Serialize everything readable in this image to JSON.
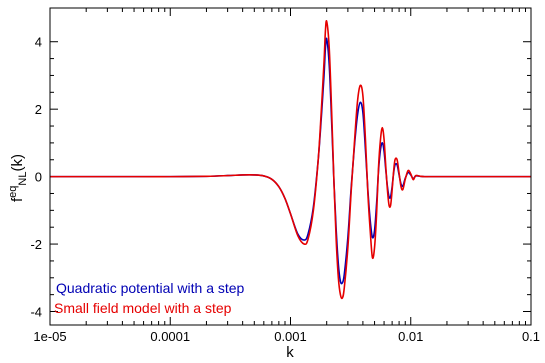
{
  "chart_data": {
    "type": "line",
    "xscale": "log",
    "xlim": [
      1e-05,
      0.1
    ],
    "ylim": [
      -4.4,
      5.0
    ],
    "xlabel": "k",
    "ylabel": {
      "base": "f",
      "sup": "eq",
      "sub": "NL",
      "arg": "(k)"
    },
    "x_ticks": [
      {
        "value": 1e-05,
        "label": "1e-05"
      },
      {
        "value": 0.0001,
        "label": "0.0001"
      },
      {
        "value": 0.001,
        "label": "0.001"
      },
      {
        "value": 0.01,
        "label": "0.01"
      },
      {
        "value": 0.1,
        "label": "0.1"
      }
    ],
    "y_ticks": [
      {
        "value": -4,
        "label": "-4"
      },
      {
        "value": -2,
        "label": "-2"
      },
      {
        "value": 0,
        "label": "0"
      },
      {
        "value": 2,
        "label": "2"
      },
      {
        "value": 4,
        "label": "4"
      }
    ],
    "grid": false,
    "legend_position": "bottom-left",
    "series": [
      {
        "name": "Quadratic potential with a step",
        "color": "#0000b4",
        "x": [
          1e-05,
          5e-05,
          0.0001,
          0.0002,
          0.0003,
          0.0004,
          0.0005,
          0.0006,
          0.0007,
          0.0008,
          0.0009,
          0.001,
          0.00115,
          0.0013,
          0.0014,
          0.00155,
          0.0017,
          0.0018,
          0.0019,
          0.00195,
          0.002,
          0.0021,
          0.0022,
          0.0023,
          0.0024,
          0.0025,
          0.0026,
          0.0027,
          0.0028,
          0.003,
          0.0032,
          0.0034,
          0.0036,
          0.0038,
          0.004,
          0.0042,
          0.0044,
          0.0046,
          0.0048,
          0.005,
          0.0052,
          0.0054,
          0.0056,
          0.0058,
          0.006,
          0.0062,
          0.0064,
          0.0066,
          0.0068,
          0.007,
          0.0072,
          0.0074,
          0.0077,
          0.008,
          0.0083,
          0.0086,
          0.009,
          0.0095,
          0.01,
          0.0105,
          0.011,
          0.012,
          0.013,
          0.015,
          0.02,
          0.03,
          0.05,
          0.1
        ],
        "y": [
          0,
          0,
          0,
          0.01,
          0.03,
          0.05,
          0.05,
          0.02,
          -0.08,
          -0.3,
          -0.65,
          -1.1,
          -1.7,
          -1.88,
          -1.7,
          -0.9,
          0.5,
          1.7,
          3.0,
          3.8,
          4.08,
          3.3,
          1.6,
          -0.2,
          -1.6,
          -2.6,
          -3.1,
          -3.15,
          -2.9,
          -1.8,
          -0.3,
          0.9,
          1.8,
          2.2,
          1.9,
          0.8,
          -0.4,
          -1.3,
          -1.8,
          -1.6,
          -0.8,
          0.2,
          0.8,
          1.0,
          0.75,
          0.2,
          -0.3,
          -0.6,
          -0.6,
          -0.3,
          0.1,
          0.35,
          0.35,
          0.05,
          -0.22,
          -0.28,
          -0.05,
          0.12,
          0.05,
          -0.06,
          0.02,
          0.01,
          0,
          0,
          0,
          0,
          0,
          0
        ]
      },
      {
        "name": "Small field model with a step",
        "color": "#e60000",
        "x": [
          1e-05,
          5e-05,
          0.0001,
          0.0002,
          0.0003,
          0.0004,
          0.0005,
          0.0006,
          0.0007,
          0.0008,
          0.0009,
          0.001,
          0.00115,
          0.0013,
          0.0014,
          0.00155,
          0.0017,
          0.0018,
          0.0019,
          0.00195,
          0.002,
          0.0021,
          0.0022,
          0.0023,
          0.0024,
          0.0025,
          0.0026,
          0.0027,
          0.0028,
          0.003,
          0.0032,
          0.0034,
          0.0036,
          0.0038,
          0.004,
          0.0042,
          0.0044,
          0.0046,
          0.0048,
          0.005,
          0.0052,
          0.0054,
          0.0056,
          0.0058,
          0.006,
          0.0062,
          0.0064,
          0.0066,
          0.0068,
          0.007,
          0.0072,
          0.0074,
          0.0077,
          0.008,
          0.0083,
          0.0086,
          0.009,
          0.0095,
          0.01,
          0.0105,
          0.011,
          0.012,
          0.013,
          0.015,
          0.02,
          0.03,
          0.05,
          0.1
        ],
        "y": [
          0,
          0,
          0,
          0.01,
          0.03,
          0.05,
          0.05,
          0.02,
          -0.08,
          -0.3,
          -0.65,
          -1.1,
          -1.75,
          -2.0,
          -1.85,
          -1.0,
          0.5,
          1.9,
          3.4,
          4.3,
          4.6,
          3.8,
          1.9,
          -0.2,
          -1.9,
          -3.0,
          -3.5,
          -3.6,
          -3.3,
          -2.1,
          -0.4,
          1.0,
          2.2,
          2.7,
          2.4,
          1.1,
          -0.5,
          -1.6,
          -2.4,
          -2.1,
          -1.1,
          0.3,
          1.1,
          1.45,
          1.1,
          0.3,
          -0.4,
          -0.85,
          -0.85,
          -0.4,
          0.15,
          0.5,
          0.5,
          0.1,
          -0.3,
          -0.38,
          -0.08,
          0.18,
          0.08,
          -0.09,
          0.03,
          0.01,
          0,
          0,
          0,
          0,
          0,
          0
        ]
      }
    ]
  }
}
